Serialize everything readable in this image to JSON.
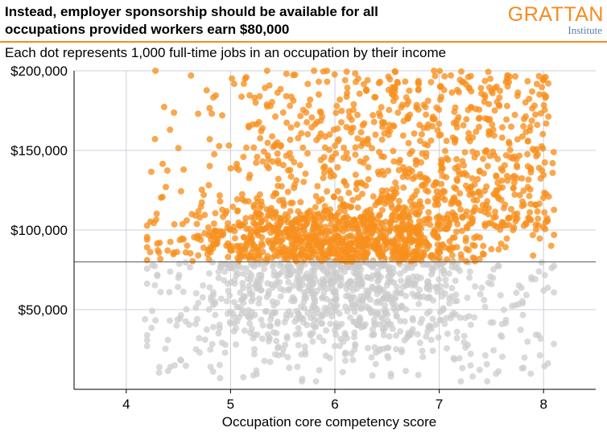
{
  "header": {
    "title": "Instead, employer sponsorship should be available for all\noccupations provided workers earn $80,000",
    "subtitle": "Each dot represents 1,000 full-time jobs in an occupation by their income"
  },
  "logo": {
    "name": "GRATTAN",
    "sub": "Institute"
  },
  "colors": {
    "above_threshold": "#f7901e",
    "below_threshold": "#cccccc",
    "threshold_line": "#555555",
    "grid": "#c9d0d9",
    "accent": "#f68b1f"
  },
  "chart_data": {
    "type": "scatter",
    "title": "Instead, employer sponsorship should be available for all occupations provided workers earn $80,000",
    "subtitle": "Each dot represents 1,000 full-time jobs in an occupation by their income",
    "xlabel": "Occupation core competency score",
    "ylabel": "",
    "xlim": [
      3.5,
      8.5
    ],
    "ylim": [
      0,
      200000
    ],
    "x_ticks": [
      {
        "value": 4,
        "label": "4"
      },
      {
        "value": 5,
        "label": "5"
      },
      {
        "value": 6,
        "label": "6"
      },
      {
        "value": 7,
        "label": "7"
      },
      {
        "value": 8,
        "label": "8"
      }
    ],
    "y_ticks": [
      {
        "value": 50000,
        "label": "$50,000"
      },
      {
        "value": 100000,
        "label": "$100,000"
      },
      {
        "value": 150000,
        "label": "$150,000"
      },
      {
        "value": 200000,
        "label": "$200,000"
      }
    ],
    "threshold": 80000,
    "grid": true,
    "dot_count_estimate": 2600,
    "point_cloud": {
      "x_range": [
        4.2,
        8.1
      ],
      "y_range": [
        5000,
        200000
      ],
      "dense_x_range": [
        4.8,
        7.4
      ],
      "dense_y_range": [
        25000,
        115000
      ],
      "top_cap": 200000
    },
    "series": [
      {
        "name": "",
        "values": [
          [
            4.28,
            200000
          ],
          [
            4.62,
            197000
          ],
          [
            4.92,
            172000
          ],
          [
            5.35,
            200000
          ],
          [
            5.8,
            200000
          ],
          [
            6.2,
            193000
          ],
          [
            6.55,
            188000
          ],
          [
            6.95,
            200000
          ],
          [
            7.35,
            176000
          ],
          [
            7.55,
            190000
          ],
          [
            8.02,
            196000
          ],
          [
            4.42,
            163000
          ],
          [
            4.55,
            138000
          ],
          [
            4.8,
            157000
          ],
          [
            5.45,
            148000
          ],
          [
            5.95,
            160000
          ],
          [
            6.3,
            145000
          ],
          [
            6.7,
            170000
          ],
          [
            7.15,
            155000
          ],
          [
            7.85,
            140000
          ],
          [
            8.05,
            121000
          ],
          [
            4.38,
            127000
          ],
          [
            4.63,
            110000
          ],
          [
            4.9,
            118000
          ],
          [
            5.2,
            108000
          ],
          [
            5.55,
            124000
          ],
          [
            5.9,
            112000
          ],
          [
            6.2,
            104000
          ],
          [
            6.5,
            118000
          ],
          [
            6.78,
            110000
          ],
          [
            7.05,
            124000
          ],
          [
            7.3,
            108000
          ],
          [
            7.6,
            131000
          ],
          [
            7.95,
            103000
          ],
          [
            4.32,
            92000
          ],
          [
            4.7,
            96000
          ],
          [
            5.1,
            90000
          ],
          [
            5.5,
            98000
          ],
          [
            6.0,
            95000
          ],
          [
            6.6,
            99000
          ],
          [
            7.1,
            93000
          ],
          [
            7.5,
            88000
          ],
          [
            7.9,
            84000
          ],
          [
            4.25,
            78000
          ],
          [
            4.5,
            70000
          ],
          [
            4.8,
            64000
          ],
          [
            5.1,
            56000
          ],
          [
            5.4,
            48000
          ],
          [
            5.7,
            42000
          ],
          [
            6.0,
            37000
          ],
          [
            6.3,
            52000
          ],
          [
            6.6,
            61000
          ],
          [
            6.9,
            58000
          ],
          [
            7.2,
            45000
          ],
          [
            7.5,
            66000
          ],
          [
            7.8,
            54000
          ],
          [
            4.18,
            44000
          ],
          [
            4.4,
            31000
          ],
          [
            4.95,
            28000
          ],
          [
            5.5,
            22000
          ],
          [
            5.85,
            12000
          ],
          [
            6.1,
            18000
          ],
          [
            6.5,
            26000
          ],
          [
            6.8,
            9000
          ],
          [
            7.3,
            15000
          ],
          [
            7.6,
            33000
          ],
          [
            8.0,
            62000
          ],
          [
            4.9,
            7000
          ],
          [
            5.25,
            9500
          ],
          [
            6.35,
            20000
          ]
        ]
      }
    ]
  }
}
